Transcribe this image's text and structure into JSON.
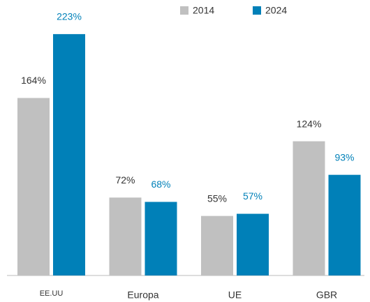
{
  "chart_data": {
    "type": "bar",
    "categories": [
      "EE.UU",
      "Europa",
      "UE",
      "GBR"
    ],
    "series": [
      {
        "name": "2014",
        "color": "#c0c0c0",
        "values": [
          164,
          72,
          55,
          124
        ],
        "value_labels": [
          "164%",
          "72%",
          "55%",
          "124%"
        ]
      },
      {
        "name": "2024",
        "color": "#0080b8",
        "values": [
          223,
          68,
          57,
          93
        ],
        "value_labels": [
          "223%",
          "68%",
          "57%",
          "93%"
        ]
      }
    ],
    "ylim": [
      0,
      250
    ]
  }
}
